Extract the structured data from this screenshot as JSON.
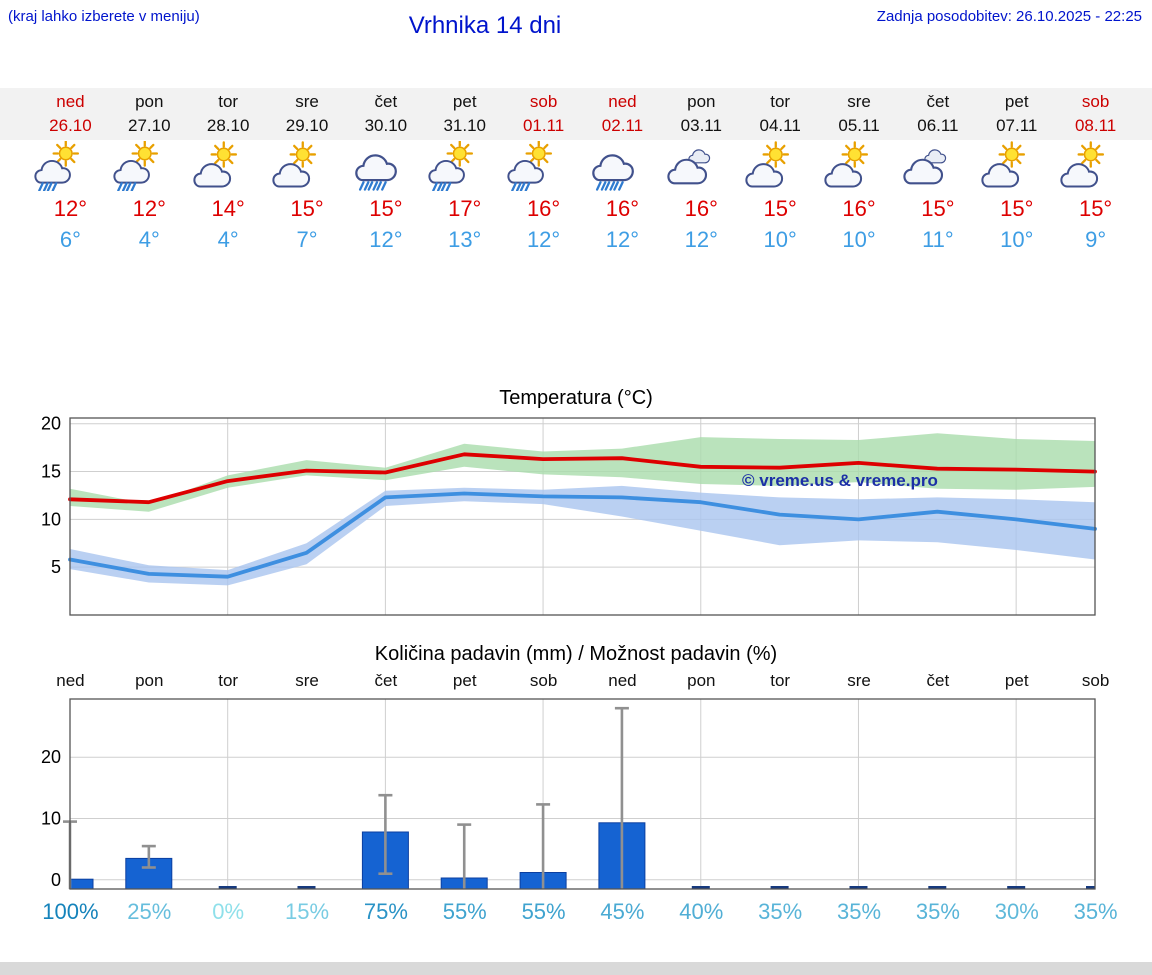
{
  "header": {
    "hint": "(kraj lahko izberete v meniju)",
    "title": "Vrhnika 14 dni",
    "last_update": "Zadnja posodobitev: 26.10.2025 - 22:25"
  },
  "colors": {
    "header_blue": "#0014cc",
    "weekend_red": "#cc0000",
    "tmax_red": "#dd0000",
    "tmin_blue": "#3d9de4",
    "strip_bg": "#f2f2f2",
    "watermark_blue": "#1c2fa6"
  },
  "days": [
    {
      "name": "ned",
      "date": "26.10",
      "weekend": true,
      "icon": "sun-cloud-rain",
      "tmax": "12°",
      "tmin": "6°"
    },
    {
      "name": "pon",
      "date": "27.10",
      "weekend": false,
      "icon": "sun-cloud-rain",
      "tmax": "12°",
      "tmin": "4°"
    },
    {
      "name": "tor",
      "date": "28.10",
      "weekend": false,
      "icon": "sun-cloud",
      "tmax": "14°",
      "tmin": "4°"
    },
    {
      "name": "sre",
      "date": "29.10",
      "weekend": false,
      "icon": "sun-cloud",
      "tmax": "15°",
      "tmin": "7°"
    },
    {
      "name": "čet",
      "date": "30.10",
      "weekend": false,
      "icon": "cloud-rain",
      "tmax": "15°",
      "tmin": "12°"
    },
    {
      "name": "pet",
      "date": "31.10",
      "weekend": false,
      "icon": "sun-cloud-rain",
      "tmax": "17°",
      "tmin": "13°"
    },
    {
      "name": "sob",
      "date": "01.11",
      "weekend": true,
      "icon": "sun-cloud-rain",
      "tmax": "16°",
      "tmin": "12°"
    },
    {
      "name": "ned",
      "date": "02.11",
      "weekend": true,
      "icon": "cloud-rain",
      "tmax": "16°",
      "tmin": "12°"
    },
    {
      "name": "pon",
      "date": "03.11",
      "weekend": false,
      "icon": "cloud",
      "tmax": "16°",
      "tmin": "12°"
    },
    {
      "name": "tor",
      "date": "04.11",
      "weekend": false,
      "icon": "sun-cloud",
      "tmax": "15°",
      "tmin": "10°"
    },
    {
      "name": "sre",
      "date": "05.11",
      "weekend": false,
      "icon": "sun-cloud",
      "tmax": "16°",
      "tmin": "10°"
    },
    {
      "name": "čet",
      "date": "06.11",
      "weekend": false,
      "icon": "cloud",
      "tmax": "15°",
      "tmin": "11°"
    },
    {
      "name": "pet",
      "date": "07.11",
      "weekend": false,
      "icon": "sun-cloud",
      "tmax": "15°",
      "tmin": "10°"
    },
    {
      "name": "sob",
      "date": "08.11",
      "weekend": true,
      "icon": "sun-cloud",
      "tmax": "15°",
      "tmin": "9°"
    }
  ],
  "chart_data": [
    {
      "type": "line",
      "title": "Temperatura (°C)",
      "ylim": [
        0,
        20.6
      ],
      "yticks": [
        5,
        10,
        15,
        20
      ],
      "grid": true,
      "legend_position": "none",
      "watermark": "© vreme.us & vreme.pro",
      "series": [
        {
          "name": "max temperatura",
          "color": "#dd0000",
          "values": [
            12.1,
            11.8,
            14.0,
            15.1,
            14.9,
            16.8,
            16.3,
            16.4,
            15.5,
            15.4,
            15.9,
            15.3,
            15.2,
            15.0
          ],
          "band": {
            "color": "#a9dcab",
            "upper": [
              13.2,
              11.6,
              14.6,
              16.2,
              15.4,
              17.9,
              17.1,
              17.4,
              18.6,
              18.4,
              18.3,
              19.0,
              18.4,
              18.2
            ],
            "lower": [
              11.4,
              10.8,
              13.3,
              14.6,
              14.1,
              15.5,
              14.7,
              14.4,
              13.7,
              13.5,
              13.9,
              13.2,
              13.1,
              13.4
            ]
          }
        },
        {
          "name": "min temperatura",
          "color": "#3e8fe0",
          "values": [
            5.8,
            4.3,
            4.0,
            6.5,
            12.3,
            12.7,
            12.4,
            12.3,
            11.8,
            10.5,
            10.0,
            10.8,
            10.0,
            9.0
          ],
          "band": {
            "color": "#a9c4ef",
            "upper": [
              6.9,
              5.2,
              4.7,
              7.5,
              13.0,
              13.3,
              13.1,
              13.5,
              12.8,
              12.3,
              12.1,
              12.3,
              12.1,
              11.8
            ],
            "lower": [
              4.8,
              3.4,
              3.1,
              5.3,
              11.4,
              11.9,
              11.6,
              10.3,
              8.8,
              7.3,
              7.8,
              7.6,
              6.8,
              5.8
            ]
          }
        }
      ]
    },
    {
      "type": "bar",
      "title": "Količina padavin (mm) / Možnost padavin (%)",
      "categories": [
        "ned",
        "pon",
        "tor",
        "sre",
        "čet",
        "pet",
        "sob",
        "ned",
        "pon",
        "tor",
        "sre",
        "čet",
        "pet",
        "sob"
      ],
      "values": [
        0.1,
        3.5,
        0,
        0,
        7.8,
        0.3,
        1.2,
        9.3,
        0,
        0,
        0,
        0,
        0,
        0
      ],
      "whisker_low": [
        0,
        2.0,
        0,
        0,
        1.0,
        0,
        0,
        0,
        0,
        0,
        0,
        0,
        0,
        0
      ],
      "whisker_high": [
        9.5,
        5.5,
        0,
        0,
        13.8,
        9.0,
        12.3,
        28.0,
        0,
        0,
        0,
        0,
        0,
        0
      ],
      "ylim": [
        -1.5,
        29.5
      ],
      "yticks": [
        0,
        10,
        20
      ],
      "bar_color": "#1563d2",
      "whisker_color": "#909090",
      "probabilities": [
        "100%",
        "25%",
        "0%",
        "15%",
        "75%",
        "55%",
        "55%",
        "45%",
        "40%",
        "35%",
        "35%",
        "35%",
        "30%",
        "35%"
      ],
      "prob_colors": [
        "#1583bb",
        "#66bedd",
        "#8fe0ea",
        "#79cce3",
        "#2a93c6",
        "#3fa3cf",
        "#3fa3cf",
        "#4aaad3",
        "#50aed5",
        "#58b4d8",
        "#58b4d8",
        "#58b4d8",
        "#5fb9da",
        "#58b4d8"
      ]
    }
  ]
}
